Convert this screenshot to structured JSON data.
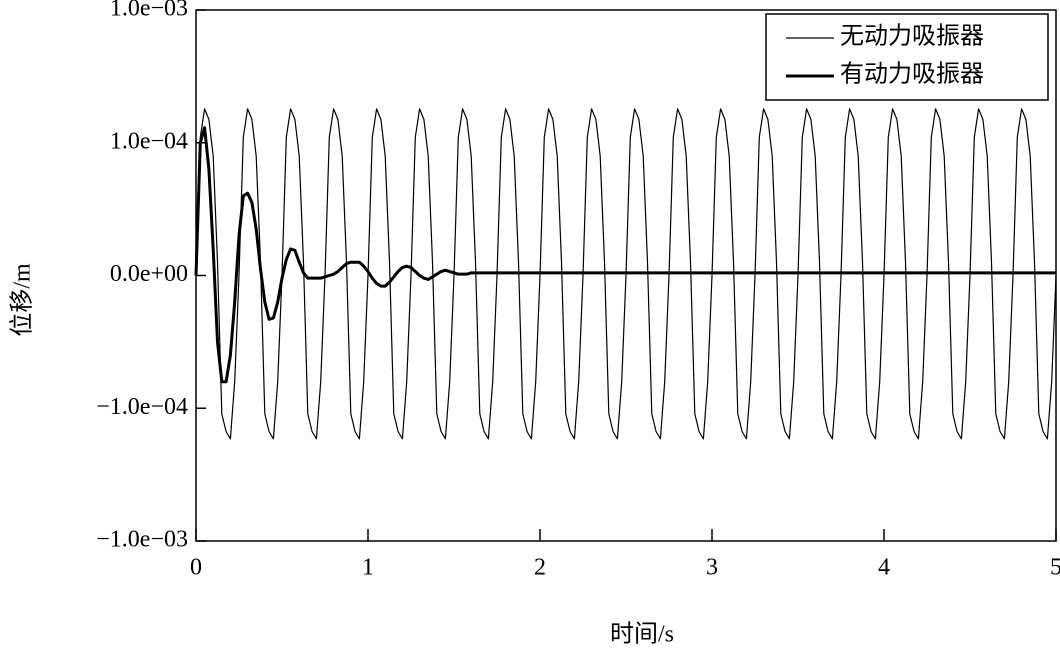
{
  "chart_data": {
    "type": "line",
    "xlabel": "时间/s",
    "ylabel": "位移/m",
    "xlim": [
      0,
      5
    ],
    "xticks": [
      0,
      1,
      2,
      3,
      4,
      5
    ],
    "ylim": [
      -0.001,
      0.001
    ],
    "yscale": "symlog",
    "linthresh": 0.0001,
    "yticks": [
      {
        "value": -0.001,
        "label": "−1.0e−03"
      },
      {
        "value": -0.0001,
        "label": "−1.0e−04"
      },
      {
        "value": 0,
        "label": "0.0e+00"
      },
      {
        "value": 0.0001,
        "label": "1.0e−04"
      },
      {
        "value": 0.001,
        "label": "1.0e−03"
      }
    ],
    "legend": "upper right",
    "x": [
      0,
      0.025,
      0.05,
      0.075,
      0.1,
      0.125,
      0.15,
      0.175,
      0.2,
      0.225,
      0.25,
      0.275,
      0.3,
      0.325,
      0.35,
      0.375,
      0.4,
      0.425,
      0.45,
      0.475,
      0.5,
      0.525,
      0.55,
      0.575,
      0.6,
      0.625,
      0.65,
      0.675,
      0.7,
      0.725,
      0.75,
      0.775,
      0.8,
      0.825,
      0.85,
      0.875,
      0.9,
      0.925,
      0.95,
      0.975,
      1,
      1.025,
      1.05,
      1.075,
      1.1,
      1.125,
      1.15,
      1.175,
      1.2,
      1.225,
      1.25,
      1.275,
      1.3,
      1.325,
      1.35,
      1.375,
      1.4,
      1.425,
      1.45,
      1.475,
      1.5,
      1.525,
      1.55,
      1.575,
      1.6,
      1.625,
      1.65,
      1.675,
      1.7,
      1.725,
      1.75,
      1.775,
      1.8,
      1.825,
      1.85,
      1.875,
      1.9,
      1.925,
      1.95,
      1.975,
      2,
      2.025,
      2.05,
      2.075,
      2.1,
      2.125,
      2.15,
      2.175,
      2.2,
      2.225,
      2.25,
      2.275,
      2.3,
      2.325,
      2.35,
      2.375,
      2.4,
      2.425,
      2.45,
      2.475,
      2.5,
      2.525,
      2.55,
      2.575,
      2.6,
      2.625,
      2.65,
      2.675,
      2.7,
      2.725,
      2.75,
      2.775,
      2.8,
      2.825,
      2.85,
      2.875,
      2.9,
      2.925,
      2.95,
      2.975,
      3,
      3.025,
      3.05,
      3.075,
      3.1,
      3.125,
      3.15,
      3.175,
      3.2,
      3.225,
      3.25,
      3.275,
      3.3,
      3.325,
      3.35,
      3.375,
      3.4,
      3.425,
      3.45,
      3.475,
      3.5,
      3.525,
      3.55,
      3.575,
      3.6,
      3.625,
      3.65,
      3.675,
      3.7,
      3.725,
      3.75,
      3.775,
      3.8,
      3.825,
      3.85,
      3.875,
      3.9,
      3.925,
      3.95,
      3.975,
      4,
      4.025,
      4.05,
      4.075,
      4.1,
      4.125,
      4.15,
      4.175,
      4.2,
      4.225,
      4.25,
      4.275,
      4.3,
      4.325,
      4.35,
      4.375,
      4.4,
      4.425,
      4.45,
      4.475,
      4.5,
      4.525,
      4.55,
      4.575,
      4.6,
      4.625,
      4.65,
      4.675,
      4.7,
      4.725,
      4.75,
      4.775,
      4.8,
      4.825,
      4.85,
      4.875,
      4.9,
      4.925,
      4.95,
      4.975,
      5
    ],
    "series": [
      {
        "name": "无动力吸振器",
        "color": "#000000",
        "width": 1.2,
        "values": [
          0,
          0.00011,
          0.00018,
          0.00015,
          9e-05,
          1e-05,
          -0.00011,
          -0.00015,
          -0.00017,
          -8e-05,
          0,
          0.00011,
          0.00018,
          0.00015,
          9e-05,
          1e-05,
          -0.00011,
          -0.00015,
          -0.00017,
          -8e-05,
          0,
          0.00011,
          0.00018,
          0.00015,
          9e-05,
          1e-05,
          -0.00011,
          -0.00015,
          -0.00017,
          -8e-05,
          0,
          0.00011,
          0.00018,
          0.00015,
          9e-05,
          1e-05,
          -0.00011,
          -0.00015,
          -0.00017,
          -8e-05,
          0,
          0.00011,
          0.00018,
          0.00015,
          9e-05,
          1e-05,
          -0.00011,
          -0.00015,
          -0.00017,
          -8e-05,
          0,
          0.00011,
          0.00018,
          0.00015,
          9e-05,
          1e-05,
          -0.00011,
          -0.00015,
          -0.00017,
          -8e-05,
          0,
          0.00011,
          0.00018,
          0.00015,
          9e-05,
          1e-05,
          -0.00011,
          -0.00015,
          -0.00017,
          -8e-05,
          0,
          0.00011,
          0.00018,
          0.00015,
          9e-05,
          1e-05,
          -0.00011,
          -0.00015,
          -0.00017,
          -8e-05,
          0,
          0.00011,
          0.00018,
          0.00015,
          9e-05,
          1e-05,
          -0.00011,
          -0.00015,
          -0.00017,
          -8e-05,
          0,
          0.00011,
          0.00018,
          0.00015,
          9e-05,
          1e-05,
          -0.00011,
          -0.00015,
          -0.00017,
          -8e-05,
          0,
          0.00011,
          0.00018,
          0.00015,
          9e-05,
          1e-05,
          -0.00011,
          -0.00015,
          -0.00017,
          -8e-05,
          0,
          0.00011,
          0.00018,
          0.00015,
          9e-05,
          1e-05,
          -0.00011,
          -0.00015,
          -0.00017,
          -8e-05,
          0,
          0.00011,
          0.00018,
          0.00015,
          9e-05,
          1e-05,
          -0.00011,
          -0.00015,
          -0.00017,
          -8e-05,
          0,
          0.00011,
          0.00018,
          0.00015,
          9e-05,
          1e-05,
          -0.00011,
          -0.00015,
          -0.00017,
          -8e-05,
          0,
          0.00011,
          0.00018,
          0.00015,
          9e-05,
          1e-05,
          -0.00011,
          -0.00015,
          -0.00017,
          -8e-05,
          0,
          0.00011,
          0.00018,
          0.00015,
          9e-05,
          1e-05,
          -0.00011,
          -0.00015,
          -0.00017,
          -8e-05,
          0,
          0.00011,
          0.00018,
          0.00015,
          9e-05,
          1e-05,
          -0.00011,
          -0.00015,
          -0.00017,
          -8e-05,
          0,
          0.00011,
          0.00018,
          0.00015,
          9e-05,
          1e-05,
          -0.00011,
          -0.00015,
          -0.00017,
          -8e-05,
          0,
          0.00011,
          0.00018,
          0.00015,
          9e-05,
          1e-05,
          -0.00011,
          -0.00015,
          -0.00017,
          -8e-05,
          0,
          0.00011,
          0.00018,
          0.00015,
          9e-05,
          1e-05,
          -0.00011,
          -0.00015,
          -0.00017,
          -8e-05,
          0
        ]
      },
      {
        "name": "有动力吸振器",
        "color": "#000000",
        "width": 3,
        "values": [
          0,
          0.0001,
          0.00013,
          8e-05,
          2e-05,
          -5e-05,
          -8e-05,
          -8e-05,
          -6e-05,
          -2e-05,
          3e-05,
          6e-05,
          6.2e-05,
          5.5e-05,
          3.5e-05,
          5e-06,
          -2e-05,
          -3.3e-05,
          -3.2e-05,
          -2e-05,
          -2e-06,
          1.2e-05,
          2e-05,
          1.9e-05,
          1e-05,
          2e-06,
          -2e-06,
          -2e-06,
          -2e-06,
          -2e-06,
          -1e-06,
          0,
          1e-06,
          3e-06,
          6e-06,
          9e-06,
          1e-05,
          1e-05,
          1e-05,
          7e-06,
          3e-06,
          -2e-06,
          -6e-06,
          -8e-06,
          -8e-06,
          -5e-06,
          -1e-06,
          3e-06,
          6e-06,
          7e-06,
          6e-06,
          3e-06,
          0,
          -2e-06,
          -3e-06,
          -1e-06,
          1e-06,
          3e-06,
          4e-06,
          3e-06,
          2e-06,
          1e-06,
          1e-06,
          1e-06,
          2e-06,
          2e-06,
          2e-06,
          2e-06,
          2e-06,
          2e-06,
          2e-06,
          2e-06,
          2e-06,
          2e-06,
          2e-06,
          2e-06,
          2e-06,
          2e-06,
          2e-06,
          2e-06,
          2e-06,
          2e-06,
          2e-06,
          2e-06,
          2e-06,
          2e-06,
          2e-06,
          2e-06,
          2e-06,
          2e-06,
          2e-06,
          2e-06,
          2e-06,
          2e-06,
          2e-06,
          2e-06,
          2e-06,
          2e-06,
          2e-06,
          2e-06,
          2e-06,
          2e-06,
          2e-06,
          2e-06,
          2e-06,
          2e-06,
          2e-06,
          2e-06,
          2e-06,
          2e-06,
          2e-06,
          2e-06,
          2e-06,
          2e-06,
          2e-06,
          2e-06,
          2e-06,
          2e-06,
          2e-06,
          2e-06,
          2e-06,
          2e-06,
          2e-06,
          2e-06,
          2e-06,
          2e-06,
          2e-06,
          2e-06,
          2e-06,
          2e-06,
          2e-06,
          2e-06,
          2e-06,
          2e-06,
          2e-06,
          2e-06,
          2e-06,
          2e-06,
          2e-06,
          2e-06,
          2e-06,
          2e-06,
          2e-06,
          2e-06,
          2e-06,
          2e-06,
          2e-06,
          2e-06,
          2e-06,
          2e-06,
          2e-06,
          2e-06,
          2e-06,
          2e-06,
          2e-06,
          2e-06,
          2e-06,
          2e-06,
          2e-06,
          2e-06,
          2e-06,
          2e-06,
          2e-06,
          2e-06,
          2e-06,
          2e-06,
          2e-06,
          2e-06,
          2e-06,
          2e-06,
          2e-06,
          2e-06,
          2e-06,
          2e-06,
          2e-06,
          2e-06,
          2e-06,
          2e-06,
          2e-06,
          2e-06,
          2e-06,
          2e-06,
          2e-06,
          2e-06,
          2e-06,
          2e-06,
          2e-06,
          2e-06,
          2e-06,
          2e-06,
          2e-06,
          2e-06,
          2e-06,
          2e-06,
          2e-06,
          2e-06,
          2e-06,
          2e-06,
          2e-06,
          2e-06,
          2e-06
        ]
      }
    ]
  }
}
